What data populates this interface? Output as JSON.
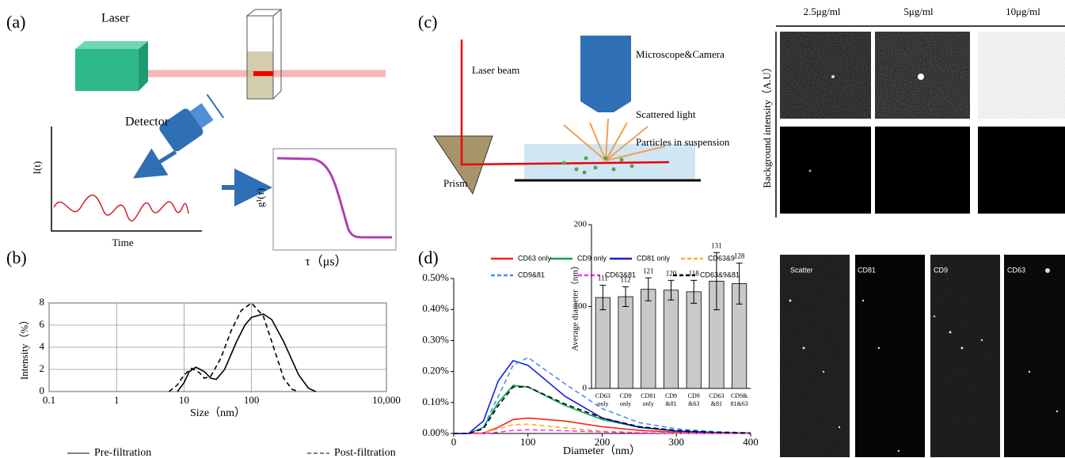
{
  "panels": {
    "a": "(a)",
    "b": "(b)",
    "c": "(c)",
    "d": "(d)"
  },
  "diagram_a": {
    "laser": "Laser",
    "detector": "Detector",
    "it": "I(t)",
    "time": "Time",
    "g": "g¹(τ)",
    "tau": "τ（μs）"
  },
  "diagram_c": {
    "beam": "Laser beam",
    "scope": "Microscope&Camera",
    "scattered": "Scattered light",
    "particles": "Particles in suspension",
    "prism": "Prism"
  },
  "images_top": {
    "columns": [
      "2.5μg/ml",
      "5μg/ml",
      "10μg/ml"
    ],
    "ylabel": "Background intensity（A.U）"
  },
  "images_bottom": {
    "labels": [
      "Scatter",
      "CD81",
      "CD9",
      "CD63"
    ]
  },
  "chart_data": [
    {
      "type": "line",
      "xscale": "log",
      "grid": true,
      "xlabel": "Size（nm）",
      "ylabel": "Intensity（%）",
      "xlim": [
        0.1,
        10000
      ],
      "xticks": [
        0.1,
        1,
        10,
        100,
        {
          "value": 10000,
          "label": "10,000"
        }
      ],
      "ylim": [
        0,
        8
      ],
      "yticks": [
        0,
        2,
        4,
        6,
        8
      ],
      "series": [
        {
          "name": "Pre-filtration",
          "color": "#000000",
          "style": "solid",
          "x": [
            8,
            10,
            12,
            15,
            20,
            25,
            30,
            40,
            60,
            80,
            100,
            150,
            200,
            300,
            500,
            700,
            900
          ],
          "values": [
            0,
            0.8,
            1.8,
            2.2,
            1.8,
            1.2,
            1.1,
            2,
            4.5,
            6,
            6.7,
            7,
            6.5,
            4.5,
            1.5,
            0.3,
            0
          ]
        },
        {
          "name": "Post-filtration",
          "color": "#000000",
          "style": "dashed",
          "x": [
            6,
            8,
            10,
            13,
            17,
            20,
            25,
            35,
            50,
            70,
            100,
            150,
            200,
            300,
            400,
            500
          ],
          "values": [
            0,
            0.6,
            1.5,
            2.1,
            1.7,
            1.2,
            1.4,
            3,
            5.5,
            7.3,
            8,
            6.8,
            4.5,
            1.2,
            0.2,
            0
          ]
        }
      ]
    },
    {
      "type": "line",
      "xlabel": "Diameter（nm）",
      "xlim": [
        0,
        400
      ],
      "xticks": [
        0,
        100,
        200,
        300,
        400
      ],
      "ylim": [
        0,
        0.5
      ],
      "yticks": [
        {
          "value": 0,
          "label": "0.00%"
        },
        {
          "value": 0.1,
          "label": "0.10%"
        },
        {
          "value": 0.2,
          "label": "0.20%"
        },
        {
          "value": 0.3,
          "label": "0.30%"
        },
        {
          "value": 0.4,
          "label": "0.40%"
        },
        {
          "value": 0.5,
          "label": "0.50%"
        }
      ],
      "x": [
        0,
        20,
        40,
        60,
        80,
        100,
        150,
        200,
        250,
        300,
        350,
        400
      ],
      "series": [
        {
          "name": "CD63 only",
          "color": "#ff2020",
          "style": "solid",
          "values": [
            0,
            0,
            0.002,
            0.02,
            0.045,
            0.05,
            0.04,
            0.022,
            0.01,
            0.004,
            0.002,
            0.001
          ]
        },
        {
          "name": "CD9 only",
          "color": "#00a651",
          "style": "solid",
          "values": [
            0,
            0,
            0.02,
            0.1,
            0.155,
            0.15,
            0.09,
            0.045,
            0.02,
            0.008,
            0.003,
            0.001
          ]
        },
        {
          "name": "CD81 only",
          "color": "#1a1adc",
          "style": "solid",
          "values": [
            0,
            0,
            0.04,
            0.17,
            0.235,
            0.22,
            0.12,
            0.05,
            0.02,
            0.008,
            0.003,
            0.001
          ]
        },
        {
          "name": "CD63&9",
          "color": "#ffb020",
          "style": "dashed",
          "values": [
            0,
            0,
            0.002,
            0.015,
            0.028,
            0.03,
            0.018,
            0.008,
            0.003,
            0.001,
            0,
            0
          ]
        },
        {
          "name": "CD9&81",
          "color": "#4a8ef0",
          "style": "dashed",
          "values": [
            0,
            0,
            0.02,
            0.12,
            0.22,
            0.245,
            0.16,
            0.08,
            0.035,
            0.015,
            0.006,
            0.002
          ]
        },
        {
          "name": "CD63&81",
          "color": "#ff30ff",
          "style": "dashed",
          "values": [
            0,
            0,
            0,
            0.004,
            0.01,
            0.012,
            0.009,
            0.005,
            0.002,
            0.001,
            0,
            0
          ]
        },
        {
          "name": "CD63&9&81",
          "color": "#000000",
          "style": "dashed",
          "values": [
            0,
            0,
            0.015,
            0.09,
            0.15,
            0.15,
            0.095,
            0.05,
            0.022,
            0.01,
            0.004,
            0.001
          ]
        }
      ]
    },
    {
      "type": "bar",
      "ylabel": "Average diameter（nm）",
      "color": "#c8c8c8",
      "categories": [
        "CD63 only",
        "CD9 only",
        "CD81 only",
        "CD9 &81",
        "CD9 &63",
        "CD63 &81",
        "CD9& 81&63"
      ],
      "values": [
        111,
        112,
        121,
        120,
        118,
        131,
        128
      ],
      "errors": [
        15,
        12,
        14,
        12,
        14,
        35,
        25
      ],
      "ylim": [
        0,
        200
      ],
      "yticks": [
        0,
        100,
        200
      ]
    }
  ]
}
